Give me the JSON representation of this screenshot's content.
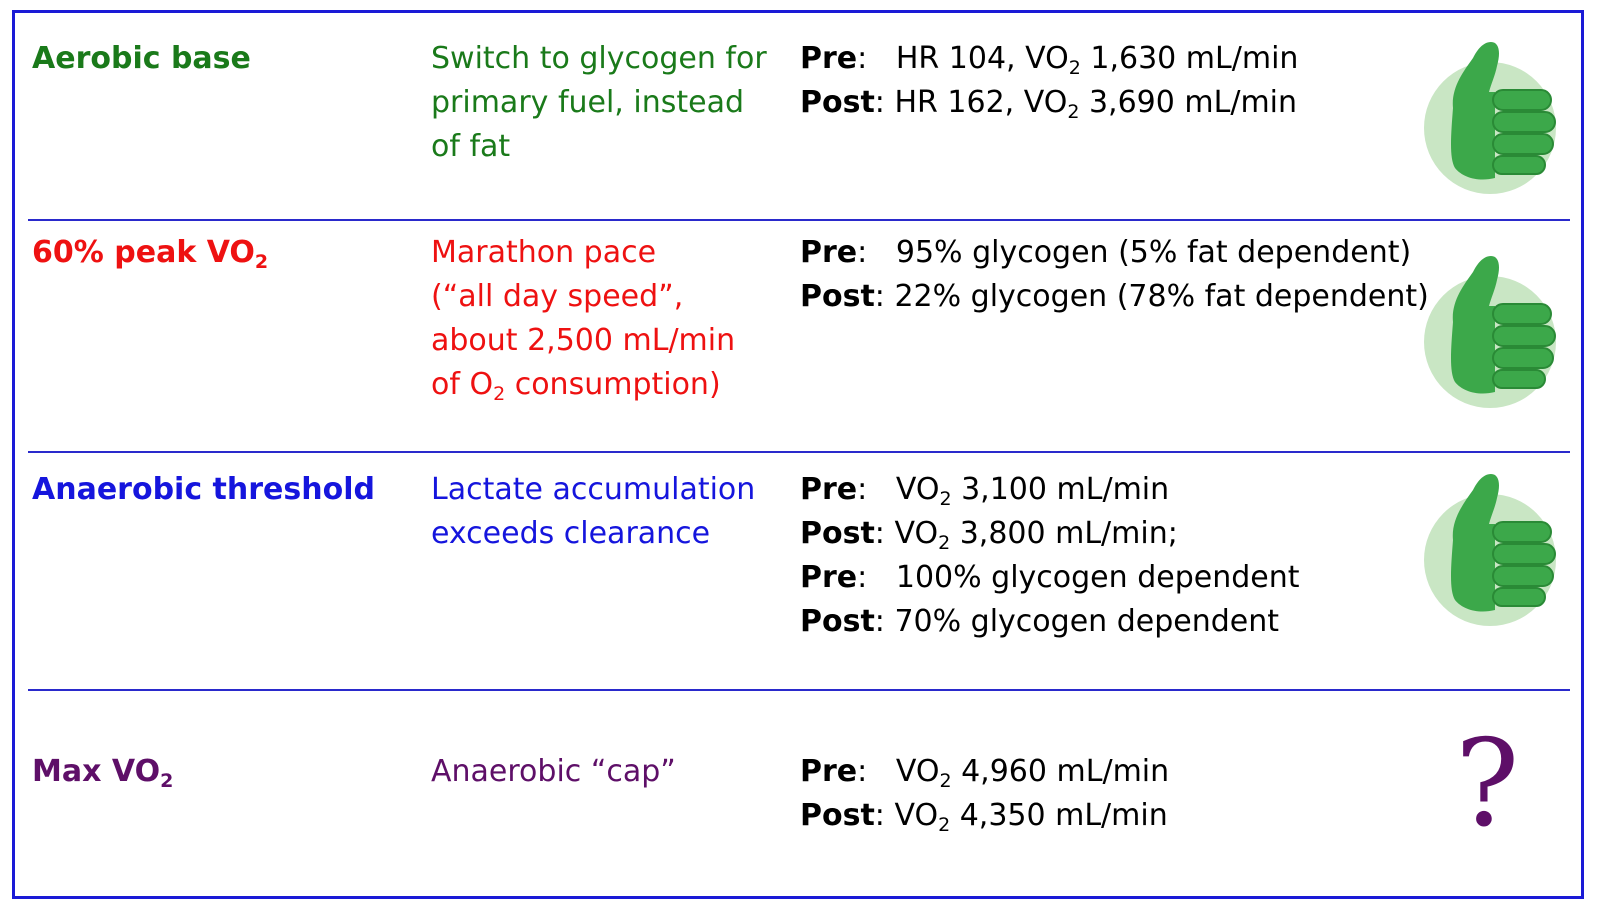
{
  "colors": {
    "border": "#1a1ad6",
    "green": "#1a7a1a",
    "red": "#ee1111",
    "blue": "#1515dd",
    "purple": "#5e0f68",
    "thumb_fill": "#3ca84a",
    "thumb_bg": "#c9e6c4"
  },
  "rows": [
    {
      "name": "Aerobic base",
      "desc": [
        "Switch to glycogen for",
        "primary fuel, instead",
        "of fat"
      ],
      "stats": [
        {
          "label": "Pre",
          "pre": "HR 104, VO",
          "sub": "2",
          "post": " 1,630 mL/min"
        },
        {
          "label": "Post",
          "pre": "HR 162, VO",
          "sub": "2",
          "post": " 3,690 mL/min"
        }
      ],
      "verdict_icon": "thumbs-up-icon"
    },
    {
      "name_pre": "60% peak VO",
      "name_sub": "2",
      "desc_lines": [
        "Marathon pace",
        "(“all day speed”,",
        "about 2,500 mL/min"
      ],
      "desc_last_pre": "of O",
      "desc_last_sub": "2",
      "desc_last_post": " consumption)",
      "stats": [
        {
          "label": "Pre",
          "text": "95% glycogen (5% fat dependent)"
        },
        {
          "label": "Post",
          "text": "22% glycogen (78% fat dependent)"
        }
      ],
      "verdict_icon": "thumbs-up-icon"
    },
    {
      "name": "Anaerobic threshold",
      "desc": [
        "Lactate accumulation",
        "exceeds clearance"
      ],
      "stats": [
        {
          "label": "Pre",
          "pre": "VO",
          "sub": "2",
          "post": " 3,100 mL/min"
        },
        {
          "label": "Post",
          "pre": "VO",
          "sub": "2",
          "post": " 3,800 mL/min;"
        },
        {
          "label": "Pre",
          "text": "100% glycogen dependent"
        },
        {
          "label": "Post",
          "text": "70% glycogen dependent"
        }
      ],
      "verdict_icon": "thumbs-up-icon"
    },
    {
      "name_pre": "Max VO",
      "name_sub": "2",
      "desc": [
        "Anaerobic “cap”"
      ],
      "stats": [
        {
          "label": "Pre",
          "pre": "VO",
          "sub": "2",
          "post": " 4,960 mL/min"
        },
        {
          "label": "Post",
          "pre": "VO",
          "sub": "2",
          "post": " 4,350 mL/min"
        }
      ],
      "verdict_icon": "question-mark-icon",
      "verdict_text": "?"
    }
  ]
}
